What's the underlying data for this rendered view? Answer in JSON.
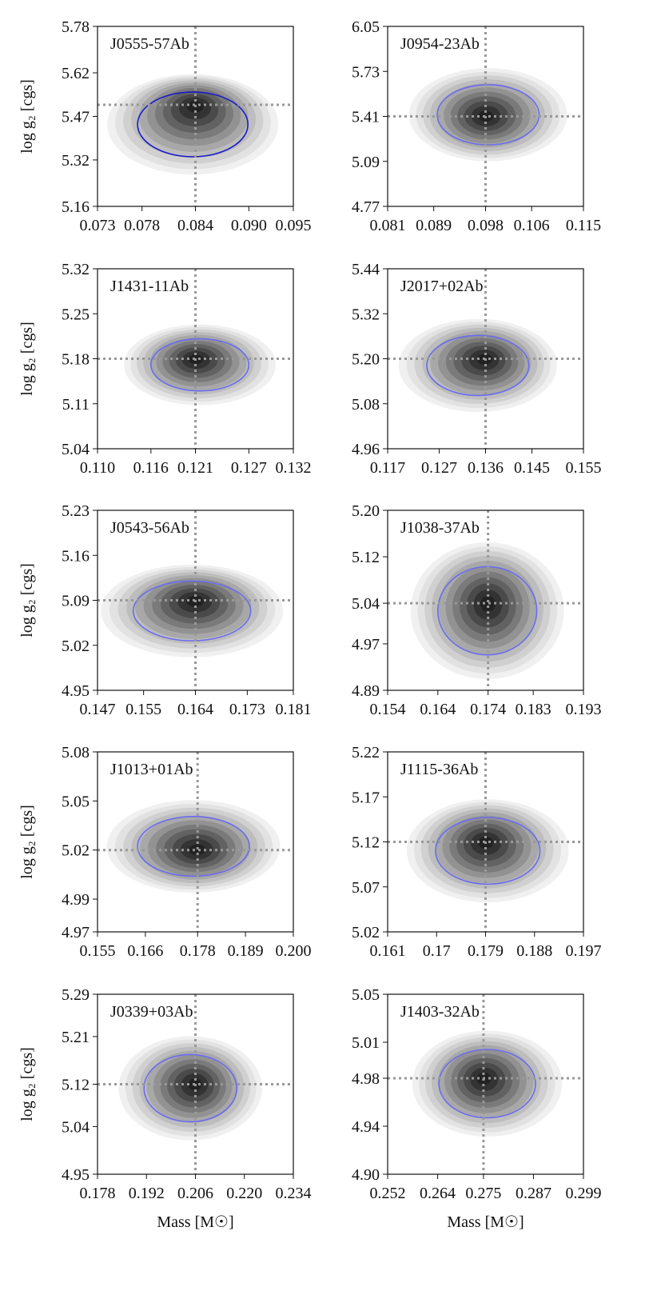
{
  "chart_data": [
    {
      "type": "contour",
      "title": "J0555-57Ab",
      "y_label": "log g₂ [cgs]",
      "xlim": [
        0.073,
        0.095
      ],
      "xticks": [
        0.073,
        0.078,
        0.084,
        {
          "value": 0.09,
          "label": "0.090"
        },
        0.095
      ],
      "ylim": [
        5.16,
        5.78
      ],
      "yticks": [
        5.16,
        5.32,
        5.47,
        5.62,
        5.78
      ],
      "x_ref": 0.084,
      "y_ref": 5.51,
      "contour_x": [
        0.0775,
        0.0899
      ],
      "contour_y": [
        5.331,
        5.554
      ],
      "contour_color": "#1a1acc"
    },
    {
      "type": "contour",
      "title": "J0954-23Ab",
      "xlim": [
        0.081,
        0.115
      ],
      "xticks": [
        0.081,
        0.089,
        0.098,
        0.106,
        0.115
      ],
      "ylim": [
        4.77,
        6.05
      ],
      "yticks": [
        4.77,
        5.09,
        5.41,
        5.73,
        6.05
      ],
      "x_ref": 0.098,
      "y_ref": 5.41,
      "contour_x": [
        0.0896,
        0.1073
      ],
      "contour_y": [
        5.208,
        5.635
      ],
      "contour_color": "#6b6bef"
    },
    {
      "type": "contour",
      "title": "J1431-11Ab",
      "y_label": "log g₂ [cgs]",
      "xlim": [
        0.11,
        0.132
      ],
      "xticks": [
        {
          "value": 0.11,
          "label": "0.110"
        },
        0.116,
        0.121,
        0.127,
        0.132
      ],
      "ylim": [
        5.04,
        5.32
      ],
      "yticks": [
        5.04,
        5.11,
        5.18,
        5.25,
        5.32
      ],
      "x_ref": 0.121,
      "y_ref": 5.18,
      "contour_x": [
        0.116,
        0.127
      ],
      "contour_y": [
        5.13,
        5.211
      ],
      "contour_color": "#6b6bef"
    },
    {
      "type": "contour",
      "title": "J2017+02Ab",
      "xlim": [
        0.117,
        0.155
      ],
      "xticks": [
        0.117,
        0.127,
        0.136,
        0.145,
        0.155
      ],
      "ylim": [
        4.96,
        5.44
      ],
      "yticks": [
        4.96,
        5.08,
        {
          "value": 5.2,
          "label": "5.20"
        },
        5.32,
        5.44
      ],
      "x_ref": 0.136,
      "y_ref": 5.2,
      "contour_x": [
        0.1246,
        0.1444
      ],
      "contour_y": [
        5.102,
        5.262
      ],
      "contour_color": "#6b6bef"
    },
    {
      "type": "contour",
      "title": "J0543-56Ab",
      "y_label": "log g₂ [cgs]",
      "xlim": [
        0.147,
        0.181
      ],
      "xticks": [
        0.147,
        0.155,
        0.164,
        0.173,
        0.181
      ],
      "ylim": [
        4.95,
        5.23
      ],
      "yticks": [
        4.95,
        5.02,
        5.09,
        5.16,
        5.23
      ],
      "x_ref": 0.164,
      "y_ref": 5.09,
      "contour_x": [
        0.1532,
        0.1736
      ],
      "contour_y": [
        5.027,
        5.12
      ],
      "contour_color": "#6b6bef"
    },
    {
      "type": "contour",
      "title": "J1038-37Ab",
      "xlim": [
        0.154,
        0.193
      ],
      "xticks": [
        0.154,
        0.164,
        0.174,
        0.183,
        0.193
      ],
      "ylim": [
        4.89,
        5.2
      ],
      "yticks": [
        4.89,
        4.97,
        5.04,
        5.12,
        {
          "value": 5.2,
          "label": "5.20"
        }
      ],
      "x_ref": 0.174,
      "y_ref": 5.04,
      "contour_x": [
        0.164,
        0.1837
      ],
      "contour_y": [
        4.951,
        5.103
      ],
      "contour_color": "#6b6bef"
    },
    {
      "type": "contour",
      "title": "J1013+01Ab",
      "y_label": "log g₂ [cgs]",
      "xlim": [
        0.155,
        0.2
      ],
      "xticks": [
        0.155,
        0.166,
        0.178,
        0.189,
        {
          "value": 0.2,
          "label": "0.200"
        }
      ],
      "ylim": [
        4.97,
        5.08
      ],
      "yticks": [
        4.97,
        4.99,
        5.02,
        5.05,
        5.08
      ],
      "x_ref": 0.178,
      "y_ref": 5.02,
      "contour_x": [
        0.1642,
        0.1899
      ],
      "contour_y": [
        5.004,
        5.0405
      ],
      "contour_color": "#6b6bef"
    },
    {
      "type": "contour",
      "title": "J1115-36Ab",
      "xlim": [
        0.161,
        0.197
      ],
      "xticks": [
        0.161,
        0.17,
        0.179,
        0.188,
        0.197
      ],
      "ylim": [
        5.02,
        5.22
      ],
      "yticks": [
        5.02,
        5.07,
        5.12,
        5.17,
        5.22
      ],
      "x_ref": 0.179,
      "y_ref": 5.12,
      "contour_x": [
        0.1698,
        0.189
      ],
      "contour_y": [
        5.073,
        5.147
      ],
      "contour_color": "#6b6bef"
    },
    {
      "type": "contour",
      "title": "J0339+03Ab",
      "y_label": "log g₂ [cgs]",
      "x_label": "Mass [M☉]",
      "xlim": [
        0.178,
        0.234
      ],
      "xticks": [
        0.178,
        0.192,
        0.206,
        {
          "value": 0.22,
          "label": "0.220"
        },
        0.234
      ],
      "ylim": [
        4.95,
        5.29
      ],
      "yticks": [
        4.95,
        5.04,
        5.12,
        5.21,
        5.29
      ],
      "x_ref": 0.206,
      "y_ref": 5.12,
      "contour_x": [
        0.1913,
        0.2178
      ],
      "contour_y": [
        5.049,
        5.176
      ],
      "contour_color": "#6b6bef"
    },
    {
      "type": "contour",
      "title": "J1403-32Ab",
      "x_label": "Mass [M☉]",
      "xlim": [
        0.252,
        0.299
      ],
      "xticks": [
        0.252,
        0.264,
        0.275,
        0.287,
        0.299
      ],
      "ylim": [
        4.9,
        5.05
      ],
      "yticks": [
        {
          "value": 4.9,
          "label": "4.90"
        },
        4.94,
        4.98,
        5.01,
        5.05
      ],
      "x_ref": 0.275,
      "y_ref": 4.98,
      "contour_x": [
        0.2643,
        0.2875
      ],
      "contour_y": [
        4.947,
        5.004
      ],
      "contour_color": "#6b6bef"
    }
  ]
}
